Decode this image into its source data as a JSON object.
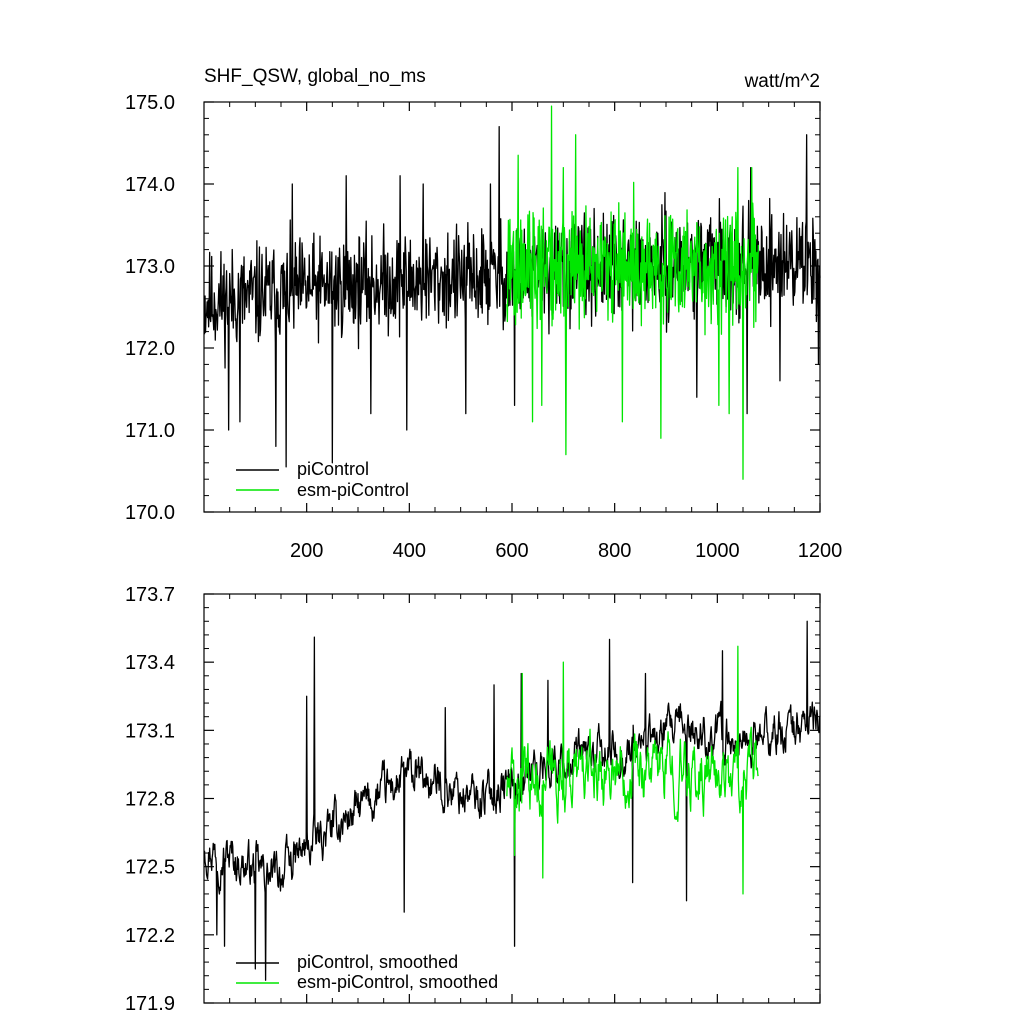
{
  "colors": {
    "piControl": "#000000",
    "esm_piControl": "#00e600",
    "background": "#ffffff"
  },
  "chart_data": [
    {
      "type": "line",
      "title_left": "SHF_QSW, global_no_ms",
      "title_right": "watt/m^2",
      "xlim": [
        0,
        1200
      ],
      "ylim": [
        170.0,
        175.0
      ],
      "xticks": [
        200,
        400,
        600,
        800,
        1000,
        1200
      ],
      "xtick_labels": [
        "200",
        "400",
        "600",
        "800",
        "1000",
        "1200"
      ],
      "yticks": [
        170.0,
        171.0,
        172.0,
        173.0,
        174.0,
        175.0
      ],
      "ytick_labels": [
        "170.0",
        "171.0",
        "172.0",
        "173.0",
        "174.0",
        "175.0"
      ],
      "legend": [
        "piControl",
        "esm-piControl"
      ],
      "legend_location": "bottom-left",
      "series": [
        {
          "name": "piControl",
          "color": "#000000",
          "x_start": 1,
          "x_end": 1200,
          "mean": 172.8,
          "trend": [
            172.55,
            172.7,
            172.8,
            172.85,
            172.9,
            173.0,
            173.05,
            173.05
          ],
          "amplitude": 0.55,
          "peaks": [
            [
              172,
              174.0
            ],
            [
              277,
              174.1
            ],
            [
              325,
              174.2
            ],
            [
              382,
              174.1
            ],
            [
              427,
              174.0
            ],
            [
              558,
              174.0
            ],
            [
              575,
              174.7
            ],
            [
              1065,
              174.2
            ],
            [
              1174,
              174.6
            ],
            [
              1197,
              174.3
            ]
          ],
          "troughs": [
            [
              48,
              171.0
            ],
            [
              70,
              171.1
            ],
            [
              140,
              170.8
            ],
            [
              160,
              170.55
            ],
            [
              250,
              170.6
            ],
            [
              325,
              171.2
            ],
            [
              395,
              171.0
            ],
            [
              510,
              171.2
            ],
            [
              605,
              171.3
            ],
            [
              960,
              171.4
            ],
            [
              1058,
              171.2
            ],
            [
              1122,
              171.6
            ],
            [
              1197,
              171.8
            ]
          ]
        },
        {
          "name": "esm-piControl",
          "color": "#00e600",
          "x_start": 590,
          "x_end": 1080,
          "mean": 172.95,
          "trend": [
            172.95,
            172.95,
            173.0,
            172.95,
            172.95
          ],
          "amplitude": 0.65,
          "peaks": [
            [
              612,
              174.35
            ],
            [
              677,
              174.95
            ],
            [
              700,
              174.2
            ],
            [
              724,
              174.6
            ],
            [
              815,
              174.8
            ],
            [
              1040,
              174.2
            ],
            [
              1067,
              174.2
            ]
          ],
          "troughs": [
            [
              640,
              171.1
            ],
            [
              658,
              171.3
            ],
            [
              705,
              170.7
            ],
            [
              815,
              171.1
            ],
            [
              890,
              170.9
            ],
            [
              1003,
              171.3
            ],
            [
              1023,
              171.2
            ],
            [
              1050,
              170.4
            ]
          ]
        }
      ]
    },
    {
      "type": "line",
      "xlim": [
        0,
        1200
      ],
      "ylim": [
        171.9,
        173.7
      ],
      "xticks": [
        200,
        400,
        600,
        800,
        1000,
        1200
      ],
      "yticks": [
        171.9,
        172.2,
        172.5,
        172.8,
        173.1,
        173.4,
        173.7
      ],
      "ytick_labels": [
        "171.9",
        "172.2",
        "172.5",
        "172.8",
        "173.1",
        "173.4",
        "173.7"
      ],
      "legend": [
        "piControl, smoothed",
        "esm-piControl, smoothed"
      ],
      "legend_location": "bottom-left",
      "series": [
        {
          "name": "piControl, smoothed",
          "color": "#000000",
          "x_start": 1,
          "x_end": 1200,
          "trend": [
            172.6,
            172.45,
            172.7,
            172.9,
            172.8,
            172.95,
            173.0,
            173.1,
            173.05,
            173.15
          ],
          "amplitude": 0.12,
          "peaks": [
            [
              200,
              173.25
            ],
            [
              215,
              173.51
            ],
            [
              470,
              173.2
            ],
            [
              565,
              173.3
            ],
            [
              618,
              173.35
            ],
            [
              670,
              173.32
            ],
            [
              790,
              173.5
            ],
            [
              860,
              173.35
            ],
            [
              940,
              173.37
            ],
            [
              1010,
              173.45
            ],
            [
              1175,
              173.58
            ]
          ],
          "troughs": [
            [
              25,
              172.2
            ],
            [
              40,
              172.15
            ],
            [
              100,
              172.05
            ],
            [
              120,
              172.0
            ],
            [
              390,
              172.3
            ],
            [
              605,
              172.15
            ],
            [
              835,
              172.43
            ],
            [
              940,
              172.35
            ]
          ]
        },
        {
          "name": "esm-piControl, smoothed",
          "color": "#00e600",
          "x_start": 590,
          "x_end": 1080,
          "trend": [
            172.85,
            172.9,
            172.95,
            172.9,
            172.9
          ],
          "amplitude": 0.17,
          "peaks": [
            [
              620,
              173.35
            ],
            [
              700,
              173.4
            ],
            [
              1040,
              173.47
            ]
          ],
          "troughs": [
            [
              605,
              172.55
            ],
            [
              660,
              172.45
            ],
            [
              1050,
              172.38
            ]
          ]
        }
      ]
    }
  ]
}
